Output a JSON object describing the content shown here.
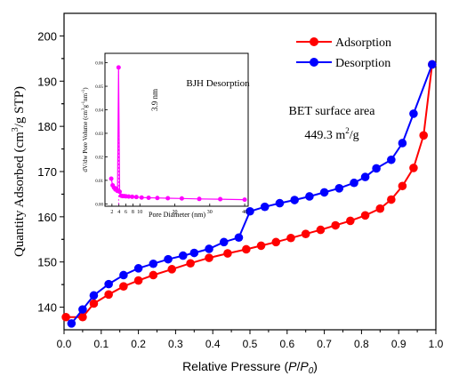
{
  "chart_data": [
    {
      "type": "line",
      "xlabel": "Relative Pressure (P/P0)",
      "xlabel_parts": {
        "prefix": "Relative Pressure (",
        "var": "P",
        "slash": "/",
        "var2": "P",
        "sub": "0",
        "suffix": ")"
      },
      "ylabel": "Quantity Adsorbed (cm3/g STP)",
      "ylabel_parts": {
        "prefix": "Quantity Adsorbed (cm",
        "sup": "3",
        "suffix": "/g STP)"
      },
      "xlim": [
        0.0,
        1.0
      ],
      "ylim": [
        135,
        205
      ],
      "xticks": [
        "0.0",
        "0.1",
        "0.2",
        "0.3",
        "0.4",
        "0.5",
        "0.6",
        "0.7",
        "0.8",
        "0.9",
        "1.0"
      ],
      "yticks": [
        "140",
        "150",
        "160",
        "170",
        "180",
        "190",
        "200"
      ],
      "legend_position": "top-right",
      "annotation": {
        "line1": "BET surface area",
        "line2_value": "449.3 m",
        "line2_sup": "2",
        "line2_unit": "/g"
      },
      "series": [
        {
          "name": "Adsorption",
          "color": "#ff0000",
          "x": [
            0.005,
            0.05,
            0.08,
            0.12,
            0.16,
            0.2,
            0.24,
            0.29,
            0.34,
            0.39,
            0.44,
            0.49,
            0.53,
            0.57,
            0.61,
            0.65,
            0.69,
            0.73,
            0.77,
            0.81,
            0.85,
            0.88,
            0.91,
            0.94,
            0.967,
            0.99
          ],
          "y": [
            137.8,
            137.8,
            140.8,
            142.8,
            144.6,
            145.9,
            147.1,
            148.4,
            149.7,
            150.9,
            151.9,
            152.8,
            153.6,
            154.4,
            155.3,
            156.2,
            157.1,
            158.1,
            159.1,
            160.3,
            161.8,
            163.8,
            166.8,
            170.8,
            178.0,
            193.7
          ]
        },
        {
          "name": "Desorption",
          "color": "#0000ff",
          "x": [
            0.02,
            0.05,
            0.08,
            0.12,
            0.16,
            0.2,
            0.24,
            0.28,
            0.32,
            0.35,
            0.39,
            0.43,
            0.47,
            0.5,
            0.54,
            0.58,
            0.62,
            0.66,
            0.7,
            0.74,
            0.78,
            0.81,
            0.84,
            0.88,
            0.91,
            0.94,
            0.99
          ],
          "y": [
            136.4,
            139.5,
            142.6,
            145.1,
            147.1,
            148.6,
            149.6,
            150.6,
            151.4,
            152.0,
            152.9,
            154.4,
            155.4,
            161.2,
            162.2,
            163.0,
            163.7,
            164.5,
            165.4,
            166.3,
            167.5,
            168.8,
            170.7,
            172.6,
            176.3,
            182.8,
            193.7
          ]
        }
      ]
    },
    {
      "type": "line",
      "title": "BJH Desorption",
      "xlabel": "Pore Diameter (nm)",
      "ylabel_parts": {
        "prefix": "dV/dw Pore Volume (cm",
        "sup": "3",
        "mid": "g",
        "sup2": "-1",
        "mid2": "nm",
        "sup3": "-1",
        "suffix": ")"
      },
      "xlim": [
        0,
        41
      ],
      "ylim": [
        -0.001,
        0.064
      ],
      "xticks": [
        "2",
        "4",
        "6",
        "8",
        "10",
        "20",
        "30",
        "40"
      ],
      "yticks": [
        "0.00",
        "0.01",
        "0.02",
        "0.03",
        "0.04",
        "0.05",
        "0.06"
      ],
      "annotation": "3.9 nm",
      "series": [
        {
          "color": "#ff00ff",
          "x": [
            1.8,
            2.2,
            2.6,
            3.0,
            3.3,
            3.6,
            3.9,
            4.2,
            4.6,
            5.0,
            5.5,
            6.0,
            6.8,
            7.8,
            9.0,
            10.5,
            12.5,
            15.0,
            18.0,
            22.0,
            27.0,
            33.0,
            40.0
          ],
          "y": [
            0.0107,
            0.0079,
            0.0069,
            0.0061,
            0.0065,
            0.0055,
            0.058,
            0.0052,
            0.0035,
            0.0033,
            0.0033,
            0.0032,
            0.0031,
            0.003,
            0.0029,
            0.0027,
            0.0026,
            0.0025,
            0.0024,
            0.0023,
            0.0021,
            0.002,
            0.0018
          ]
        }
      ]
    }
  ]
}
